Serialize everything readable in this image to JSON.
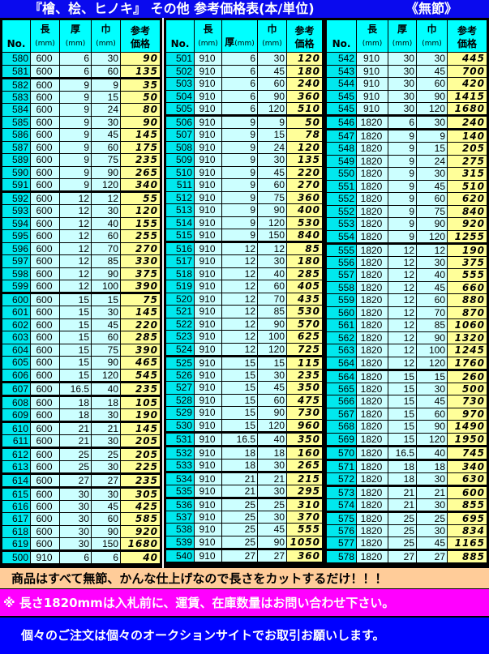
{
  "title": {
    "main": "『檜、桧、ヒノキ』 その他  参考価格表(本/単位)",
    "tag": "《無節》"
  },
  "headers": {
    "no": "No.",
    "len": "長",
    "thick": "厚",
    "width": "巾",
    "unit": "(mm)",
    "price1": "参考",
    "price2": "価格"
  },
  "colors": {
    "title_bg": "#0a0aee",
    "header_bg": "#00ffff",
    "cell_bg": "#ccffff",
    "price_bg": "#ffff99",
    "note1_bg": "#ffcc99",
    "note2_bg": "#ff00ff",
    "note3_bg": "#0000ff"
  },
  "panels": [
    {
      "rows": [
        [
          "580",
          "600",
          "6",
          "30",
          "90"
        ],
        [
          "581",
          "600",
          "6",
          "60",
          "135"
        ],
        [
          "582",
          "600",
          "9",
          "9",
          "35"
        ],
        [
          "583",
          "600",
          "9",
          "15",
          "50"
        ],
        [
          "584",
          "600",
          "9",
          "24",
          "80"
        ],
        [
          "585",
          "600",
          "9",
          "30",
          "90"
        ],
        [
          "586",
          "600",
          "9",
          "45",
          "145"
        ],
        [
          "587",
          "600",
          "9",
          "60",
          "175"
        ],
        [
          "589",
          "600",
          "9",
          "75",
          "235"
        ],
        [
          "590",
          "600",
          "9",
          "90",
          "265"
        ],
        [
          "591",
          "600",
          "9",
          "120",
          "340"
        ],
        [
          "592",
          "600",
          "12",
          "12",
          "55"
        ],
        [
          "593",
          "600",
          "12",
          "30",
          "120"
        ],
        [
          "594",
          "600",
          "12",
          "40",
          "155"
        ],
        [
          "595",
          "600",
          "12",
          "60",
          "255"
        ],
        [
          "596",
          "600",
          "12",
          "70",
          "270"
        ],
        [
          "597",
          "600",
          "12",
          "85",
          "330"
        ],
        [
          "598",
          "600",
          "12",
          "90",
          "375"
        ],
        [
          "599",
          "600",
          "12",
          "100",
          "390"
        ],
        [
          "600",
          "600",
          "15",
          "15",
          "75"
        ],
        [
          "601",
          "600",
          "15",
          "30",
          "145"
        ],
        [
          "602",
          "600",
          "15",
          "45",
          "220"
        ],
        [
          "603",
          "600",
          "15",
          "60",
          "285"
        ],
        [
          "604",
          "600",
          "15",
          "75",
          "390"
        ],
        [
          "605",
          "600",
          "15",
          "90",
          "465"
        ],
        [
          "606",
          "600",
          "15",
          "120",
          "545"
        ],
        [
          "607",
          "600",
          "16.5",
          "40",
          "235"
        ],
        [
          "608",
          "600",
          "18",
          "18",
          "105"
        ],
        [
          "609",
          "600",
          "18",
          "30",
          "190"
        ],
        [
          "610",
          "600",
          "21",
          "21",
          "145"
        ],
        [
          "611",
          "600",
          "21",
          "30",
          "205"
        ],
        [
          "612",
          "600",
          "25",
          "25",
          "205"
        ],
        [
          "613",
          "600",
          "25",
          "30",
          "225"
        ],
        [
          "614",
          "600",
          "27",
          "27",
          "235"
        ],
        [
          "615",
          "600",
          "30",
          "30",
          "305"
        ],
        [
          "616",
          "600",
          "30",
          "45",
          "425"
        ],
        [
          "617",
          "600",
          "30",
          "60",
          "585"
        ],
        [
          "618",
          "600",
          "30",
          "90",
          "920"
        ],
        [
          "619",
          "600",
          "30",
          "150",
          "1680"
        ],
        [
          "500",
          "910",
          "6",
          "6",
          "40"
        ]
      ]
    },
    {
      "rows": [
        [
          "501",
          "910",
          "6",
          "30",
          "120"
        ],
        [
          "502",
          "910",
          "6",
          "45",
          "180"
        ],
        [
          "503",
          "910",
          "6",
          "60",
          "240"
        ],
        [
          "504",
          "910",
          "6",
          "90",
          "360"
        ],
        [
          "505",
          "910",
          "6",
          "120",
          "510"
        ],
        [
          "506",
          "910",
          "9",
          "9",
          "50"
        ],
        [
          "507",
          "910",
          "9",
          "15",
          "78"
        ],
        [
          "508",
          "910",
          "9",
          "24",
          "120"
        ],
        [
          "509",
          "910",
          "9",
          "30",
          "135"
        ],
        [
          "510",
          "910",
          "9",
          "45",
          "220"
        ],
        [
          "511",
          "910",
          "9",
          "60",
          "270"
        ],
        [
          "512",
          "910",
          "9",
          "75",
          "360"
        ],
        [
          "513",
          "910",
          "9",
          "90",
          "400"
        ],
        [
          "514",
          "910",
          "9",
          "120",
          "530"
        ],
        [
          "515",
          "910",
          "9",
          "150",
          "840"
        ],
        [
          "516",
          "910",
          "12",
          "12",
          "85"
        ],
        [
          "517",
          "910",
          "12",
          "30",
          "180"
        ],
        [
          "518",
          "910",
          "12",
          "40",
          "285"
        ],
        [
          "519",
          "910",
          "12",
          "60",
          "405"
        ],
        [
          "520",
          "910",
          "12",
          "70",
          "435"
        ],
        [
          "521",
          "910",
          "12",
          "85",
          "530"
        ],
        [
          "522",
          "910",
          "12",
          "90",
          "570"
        ],
        [
          "523",
          "910",
          "12",
          "100",
          "625"
        ],
        [
          "524",
          "910",
          "12",
          "120",
          "725"
        ],
        [
          "525",
          "910",
          "15",
          "15",
          "115"
        ],
        [
          "526",
          "910",
          "15",
          "30",
          "235"
        ],
        [
          "527",
          "910",
          "15",
          "45",
          "350"
        ],
        [
          "528",
          "910",
          "15",
          "60",
          "475"
        ],
        [
          "529",
          "910",
          "15",
          "90",
          "730"
        ],
        [
          "530",
          "910",
          "15",
          "120",
          "960"
        ],
        [
          "531",
          "910",
          "16.5",
          "40",
          "350"
        ],
        [
          "532",
          "910",
          "18",
          "18",
          "160"
        ],
        [
          "533",
          "910",
          "18",
          "30",
          "265"
        ],
        [
          "534",
          "910",
          "21",
          "21",
          "215"
        ],
        [
          "535",
          "910",
          "21",
          "30",
          "295"
        ],
        [
          "536",
          "910",
          "25",
          "25",
          "310"
        ],
        [
          "537",
          "910",
          "25",
          "30",
          "370"
        ],
        [
          "538",
          "910",
          "25",
          "45",
          "555"
        ],
        [
          "539",
          "910",
          "25",
          "90",
          "1050"
        ],
        [
          "540",
          "910",
          "27",
          "27",
          "360"
        ]
      ]
    },
    {
      "rows": [
        [
          "542",
          "910",
          "30",
          "30",
          "445"
        ],
        [
          "543",
          "910",
          "30",
          "45",
          "700"
        ],
        [
          "544",
          "910",
          "30",
          "60",
          "420"
        ],
        [
          "545",
          "910",
          "30",
          "90",
          "1415"
        ],
        [
          "545",
          "910",
          "30",
          "120",
          "1680"
        ],
        [
          "546",
          "1820",
          "6",
          "30",
          "240"
        ],
        [
          "547",
          "1820",
          "9",
          "9",
          "140"
        ],
        [
          "548",
          "1820",
          "9",
          "15",
          "205"
        ],
        [
          "549",
          "1820",
          "9",
          "24",
          "275"
        ],
        [
          "550",
          "1820",
          "9",
          "30",
          "315"
        ],
        [
          "551",
          "1820",
          "9",
          "45",
          "510"
        ],
        [
          "552",
          "1820",
          "9",
          "60",
          "620"
        ],
        [
          "552",
          "1820",
          "9",
          "75",
          "840"
        ],
        [
          "553",
          "1820",
          "9",
          "90",
          "920"
        ],
        [
          "554",
          "1820",
          "9",
          "120",
          "1255"
        ],
        [
          "555",
          "1820",
          "12",
          "12",
          "190"
        ],
        [
          "556",
          "1820",
          "12",
          "30",
          "375"
        ],
        [
          "557",
          "1820",
          "12",
          "40",
          "555"
        ],
        [
          "558",
          "1820",
          "12",
          "45",
          "660"
        ],
        [
          "559",
          "1820",
          "12",
          "60",
          "880"
        ],
        [
          "560",
          "1820",
          "12",
          "70",
          "870"
        ],
        [
          "561",
          "1820",
          "12",
          "85",
          "1060"
        ],
        [
          "562",
          "1820",
          "12",
          "90",
          "1320"
        ],
        [
          "563",
          "1820",
          "12",
          "100",
          "1245"
        ],
        [
          "564",
          "1820",
          "12",
          "120",
          "1760"
        ],
        [
          "564",
          "1820",
          "15",
          "15",
          "260"
        ],
        [
          "565",
          "1820",
          "15",
          "30",
          "500"
        ],
        [
          "566",
          "1820",
          "15",
          "45",
          "730"
        ],
        [
          "567",
          "1820",
          "15",
          "60",
          "970"
        ],
        [
          "568",
          "1820",
          "15",
          "90",
          "1490"
        ],
        [
          "569",
          "1820",
          "15",
          "120",
          "1950"
        ],
        [
          "570",
          "1820",
          "16.5",
          "40",
          "745"
        ],
        [
          "571",
          "1820",
          "18",
          "18",
          "340"
        ],
        [
          "572",
          "1820",
          "18",
          "30",
          "630"
        ],
        [
          "573",
          "1820",
          "21",
          "21",
          "600"
        ],
        [
          "574",
          "1820",
          "21",
          "30",
          "855"
        ],
        [
          "575",
          "1820",
          "25",
          "25",
          "695"
        ],
        [
          "576",
          "1820",
          "25",
          "30",
          "834"
        ],
        [
          "577",
          "1820",
          "25",
          "45",
          "1165"
        ],
        [
          "578",
          "1820",
          "27",
          "27",
          "885"
        ]
      ]
    }
  ],
  "notes": [
    "商品はすべて無節、かんな仕上げなので長さをカットするだけ！！！",
    "※  長さ1820mmは入札前に、運賃、在庫数量はお問い合わせ下さい。",
    "個々のご注文は個々のオークションサイトでお取引お願いします。"
  ]
}
